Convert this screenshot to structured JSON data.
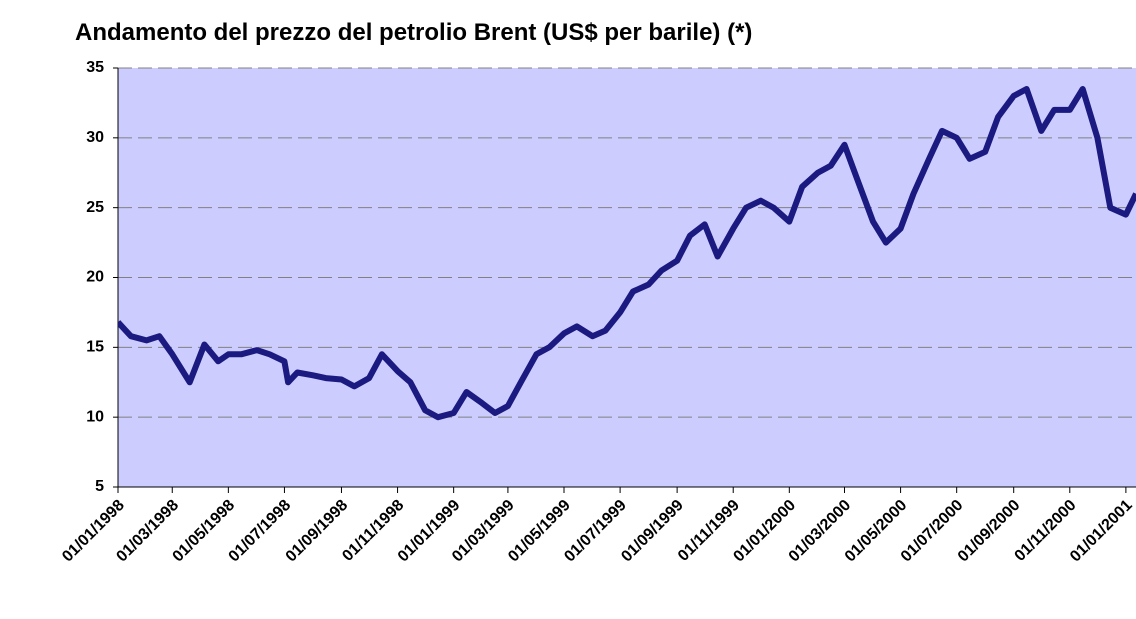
{
  "chart_data": {
    "type": "line",
    "title": "Andamento del prezzo del petrolio Brent (US$ per barile) (*)",
    "x": [
      "01/01/1998",
      "15/01/1998",
      "01/02/1998",
      "15/02/1998",
      "01/03/1998",
      "20/03/1998",
      "05/04/1998",
      "20/04/1998",
      "01/05/1998",
      "15/05/1998",
      "01/06/1998",
      "15/06/1998",
      "01/07/1998",
      "05/07/1998",
      "15/07/1998",
      "01/08/1998",
      "15/08/1998",
      "01/09/1998",
      "15/09/1998",
      "01/10/1998",
      "15/10/1998",
      "01/11/1998",
      "15/11/1998",
      "01/12/1998",
      "15/12/1998",
      "01/01/1999",
      "15/01/1999",
      "01/02/1999",
      "15/02/1999",
      "01/03/1999",
      "15/03/1999",
      "01/04/1999",
      "15/04/1999",
      "01/05/1999",
      "15/05/1999",
      "01/06/1999",
      "15/06/1999",
      "01/07/1999",
      "15/07/1999",
      "01/08/1999",
      "15/08/1999",
      "01/09/1999",
      "15/09/1999",
      "01/10/1999",
      "15/10/1999",
      "01/11/1999",
      "15/11/1999",
      "01/12/1999",
      "15/12/1999",
      "01/01/2000",
      "15/01/2000",
      "01/02/2000",
      "15/02/2000",
      "01/03/2000",
      "15/03/2000",
      "01/04/2000",
      "15/04/2000",
      "01/05/2000",
      "15/05/2000",
      "01/06/2000",
      "15/06/2000",
      "01/07/2000",
      "15/07/2000",
      "01/08/2000",
      "15/08/2000",
      "01/09/2000",
      "15/09/2000",
      "01/10/2000",
      "15/10/2000",
      "01/11/2000",
      "15/11/2000",
      "01/12/2000",
      "15/12/2000",
      "01/01/2001",
      "12/01/2001"
    ],
    "values": [
      16.8,
      15.8,
      15.5,
      15.8,
      14.5,
      12.5,
      15.2,
      14.0,
      14.5,
      14.5,
      14.8,
      14.5,
      14.0,
      12.5,
      13.2,
      13.0,
      12.8,
      12.7,
      12.2,
      12.8,
      14.5,
      13.3,
      12.5,
      10.5,
      10.0,
      10.3,
      11.8,
      11.0,
      10.3,
      10.8,
      12.5,
      14.5,
      15.0,
      16.0,
      16.5,
      15.8,
      16.2,
      17.5,
      19.0,
      19.5,
      20.5,
      21.2,
      23.0,
      23.8,
      21.5,
      23.5,
      25.0,
      25.5,
      25.0,
      24.0,
      26.5,
      27.5,
      28.0,
      29.5,
      27.0,
      24.0,
      22.5,
      23.5,
      26.0,
      28.5,
      30.5,
      30.0,
      28.5,
      29.0,
      31.5,
      33.0,
      33.5,
      30.5,
      32.0,
      32.0,
      33.5,
      30.0,
      25.0,
      24.5,
      26.0
    ],
    "color": "#1a1a80",
    "xlim": [
      "01/01/1998",
      "12/01/2001"
    ],
    "xticks": [
      "01/01/1998",
      "01/03/1998",
      "01/05/1998",
      "01/07/1998",
      "01/09/1998",
      "01/11/1998",
      "01/01/1999",
      "01/03/1999",
      "01/05/1999",
      "01/07/1999",
      "01/09/1999",
      "01/11/1999",
      "01/01/2000",
      "01/03/2000",
      "01/05/2000",
      "01/07/2000",
      "01/09/2000",
      "01/11/2000",
      "01/01/2001"
    ],
    "ylim": [
      5,
      35
    ],
    "yticks": [
      5,
      10,
      15,
      20,
      25,
      30,
      35
    ],
    "grid": true
  }
}
